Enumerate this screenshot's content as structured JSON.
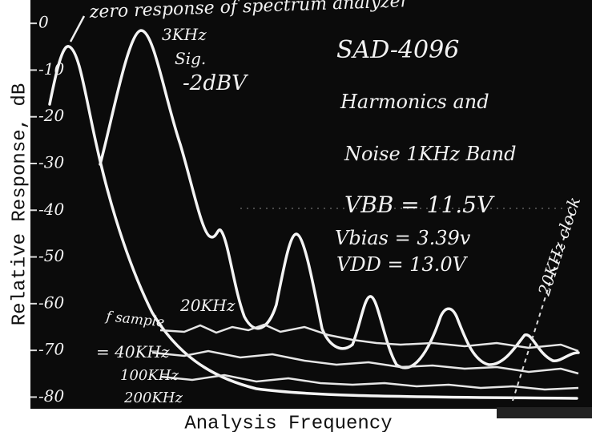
{
  "chart_data": {
    "type": "scope-photo",
    "y_label": "Relative Response, dB",
    "x_label": "Analysis Frequency",
    "ylim": [
      -82.5,
      5
    ],
    "yticks": [
      0,
      -10,
      -20,
      -30,
      -40,
      -50,
      -60,
      -70,
      -80
    ],
    "annotations": {
      "zero": "zero response of spectrum analyzer",
      "sig1": "3KHz",
      "sig2": "Sig.",
      "sig3": "-2dBV",
      "model": "SAD-4096",
      "desc1": "Harmonics and",
      "desc2": "Noise 1KHz Band",
      "vbb": "VBB = 11.5V",
      "vbias": "Vbias = 3.39v",
      "vdd": "VDD = 13.0V",
      "clock": "20KHz clock",
      "n20": "20KHz",
      "fs": "f sample",
      "n40": "= 40KHz",
      "n100": "100KHz",
      "n200": "200KHz"
    }
  }
}
